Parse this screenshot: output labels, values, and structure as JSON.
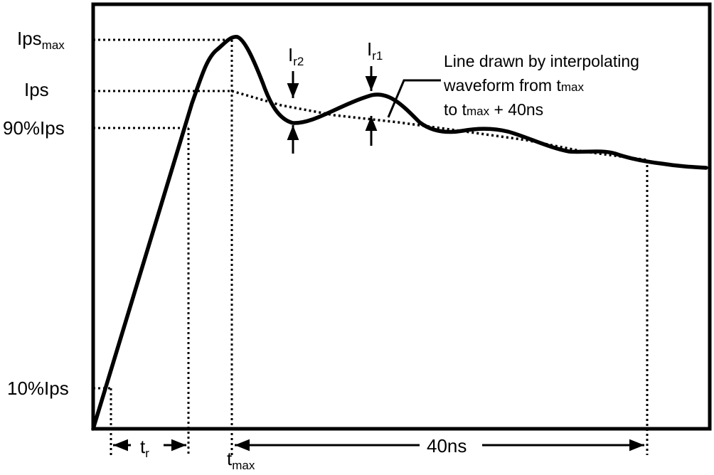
{
  "diagram": {
    "y_levels": [
      {
        "id": "ipsmax",
        "main": "Ips",
        "sub": "max"
      },
      {
        "id": "ips",
        "main": "Ips",
        "sub": ""
      },
      {
        "id": "ips90",
        "main": "90%Ips",
        "sub": ""
      },
      {
        "id": "ips10",
        "main": "10%Ips",
        "sub": ""
      }
    ],
    "ripple_labels": [
      {
        "id": "r2",
        "main": "I",
        "sub": "r2"
      },
      {
        "id": "r1",
        "main": "I",
        "sub": "r1"
      }
    ],
    "time_labels": {
      "tr_main": "t",
      "tr_sub": "r",
      "tmax_main": "t",
      "tmax_sub": "max",
      "span": "40ns"
    },
    "annotation": {
      "line1": "Line drawn by interpolating",
      "line2_a": "waveform from ",
      "line2_t": "t",
      "line2_sub": "max",
      "line3_a": "to ",
      "line3_t": "t",
      "line3_sub": "max",
      "line3_b": " + 40ns"
    },
    "colors": {
      "ink": "#000000",
      "background": "#ffffff"
    }
  }
}
